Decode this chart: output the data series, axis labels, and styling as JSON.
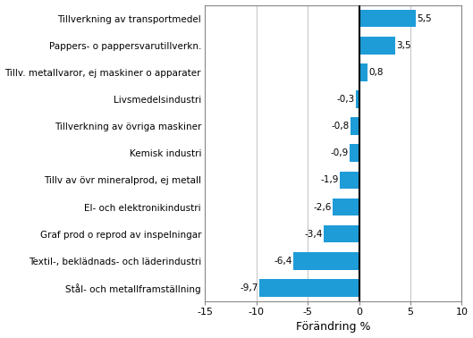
{
  "categories": [
    "Stål- och metallframställning",
    "Textil-, beklädnads- och läderindustri",
    "Graf prod o reprod av inspelningar",
    "El- och elektronikindustri",
    "Tillv av övr mineralprod, ej metall",
    "Kemisk industri",
    "Tillverkning av övriga maskiner",
    "Livsmedelsindustri",
    "Tillv. metallvaror, ej maskiner o apparater",
    "Pappers- o pappersvarutillverkn.",
    "Tillverkning av transportmedel"
  ],
  "values": [
    -9.7,
    -6.4,
    -3.4,
    -2.6,
    -1.9,
    -0.9,
    -0.8,
    -0.3,
    0.8,
    3.5,
    5.5
  ],
  "bar_color": "#1E9CD7",
  "xlabel": "Förändring %",
  "xlim": [
    -15,
    10
  ],
  "xticks": [
    -15,
    -10,
    -5,
    0,
    5,
    10
  ],
  "background_color": "#ffffff",
  "grid_color": "#c8c8c8",
  "label_fontsize": 7.5,
  "tick_fontsize": 8,
  "xlabel_fontsize": 9,
  "bar_height": 0.65
}
